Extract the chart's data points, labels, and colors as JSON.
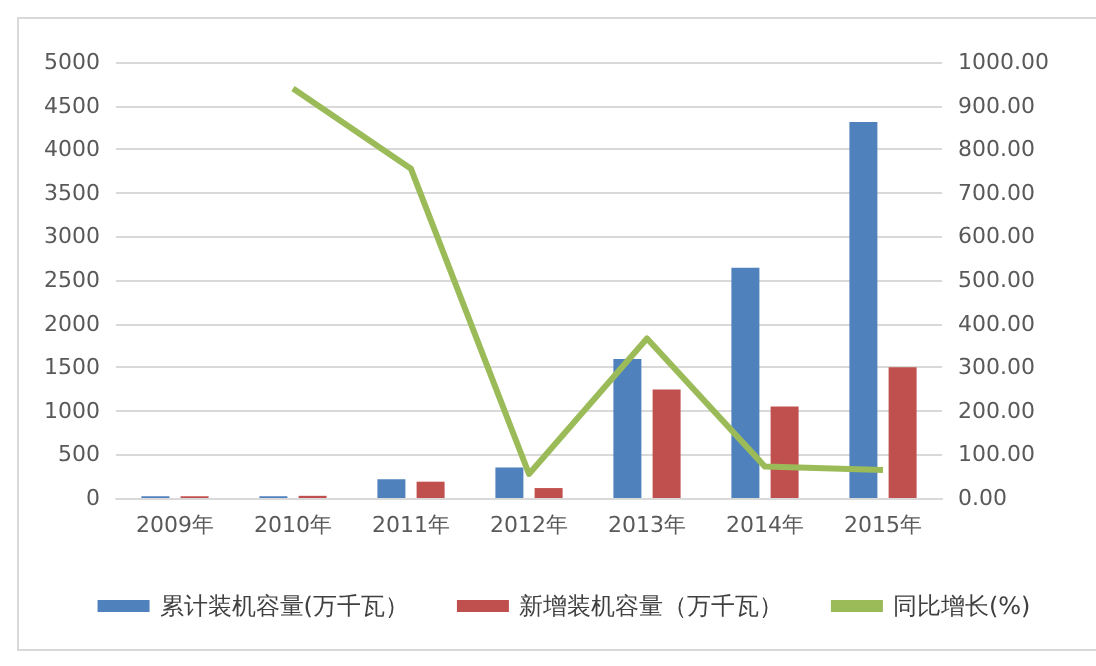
{
  "chart_data": {
    "type": "bar",
    "categories": [
      "2009年",
      "2010年",
      "2011年",
      "2012年",
      "2013年",
      "2014年",
      "2015年"
    ],
    "series": [
      {
        "name": "累计装机容量(万千瓦）",
        "color": "#4f81bd",
        "values": [
          20,
          20,
          215,
          350,
          1595,
          2640,
          4313
        ]
      },
      {
        "name": "新增装机容量（万千瓦）",
        "color": "#c0504d",
        "values": [
          20,
          25,
          187,
          114,
          1245,
          1050,
          1500
        ]
      },
      {
        "name": "同比增长(%)",
        "type": "line",
        "axis": "y2",
        "color": "#9bbb59",
        "values": [
          null,
          939,
          755,
          55,
          366,
          72,
          64
        ]
      }
    ],
    "ylim": [
      0,
      5000
    ],
    "yticks": [
      0,
      500,
      1000,
      1500,
      2000,
      2500,
      3000,
      3500,
      4000,
      4500,
      5000
    ],
    "y2lim": [
      0,
      1000
    ],
    "y2ticks": [
      {
        "value": 0,
        "label": "0.00"
      },
      {
        "value": 100,
        "label": "100.00"
      },
      {
        "value": 200,
        "label": "200.00"
      },
      {
        "value": 300,
        "label": "300.00"
      },
      {
        "value": 400,
        "label": "400.00"
      },
      {
        "value": 500,
        "label": "500.00"
      },
      {
        "value": 600,
        "label": "600.00"
      },
      {
        "value": 700,
        "label": "700.00"
      },
      {
        "value": 800,
        "label": "800.00"
      },
      {
        "value": 900,
        "label": "900.00"
      },
      {
        "value": 1000,
        "label": "1000.00"
      }
    ],
    "grid": "y",
    "legend": "bottom",
    "marker": "none"
  }
}
